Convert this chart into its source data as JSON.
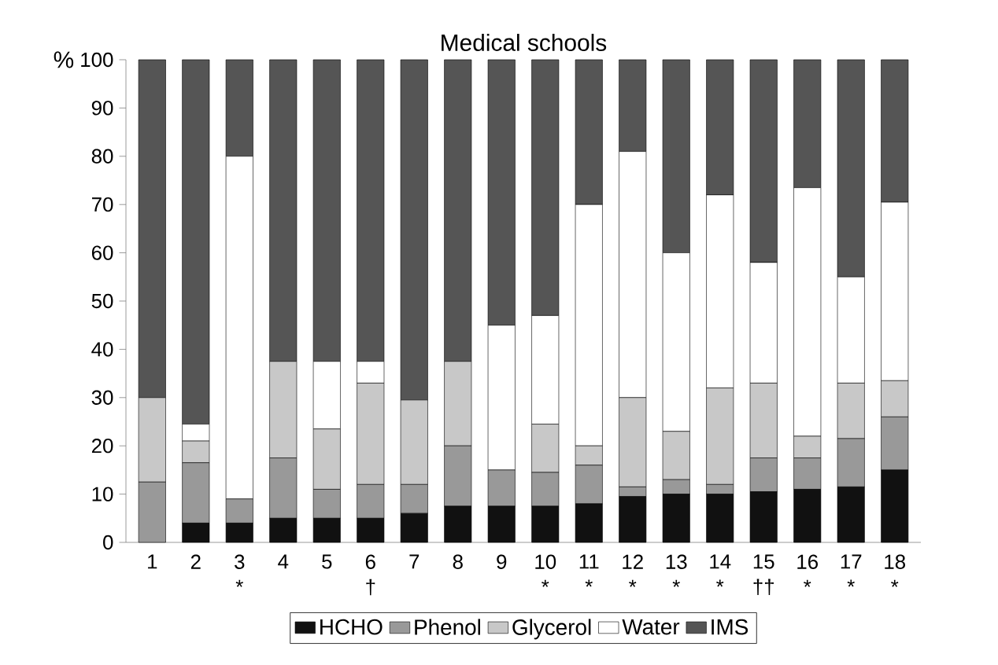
{
  "chart_data": {
    "type": "bar",
    "stacked": true,
    "title": "Medical schools",
    "ylabel": "%",
    "categories": [
      "1",
      "2",
      "3 *",
      "4",
      "5",
      "6 †",
      "7",
      "8",
      "9",
      "10 *",
      "11 *",
      "12 *",
      "13 *",
      "14 *",
      "15 ††",
      "16 *",
      "17 *",
      "18 *"
    ],
    "series": [
      {
        "name": "HCHO",
        "color": "#111111",
        "values": [
          0,
          4,
          4,
          5,
          5,
          5,
          6,
          7.5,
          7.5,
          7.5,
          8,
          9.5,
          10,
          10,
          10.5,
          11,
          11.5,
          15
        ]
      },
      {
        "name": "Phenol",
        "color": "#999999",
        "values": [
          12.5,
          12.5,
          5,
          12.5,
          6,
          7,
          6,
          12.5,
          7.5,
          7,
          8,
          2,
          3,
          2,
          7,
          6.5,
          10,
          11
        ]
      },
      {
        "name": "Glycerol",
        "color": "#c8c8c8",
        "values": [
          17.5,
          4.5,
          0,
          20,
          12.5,
          21,
          17.5,
          17.5,
          0,
          10,
          4,
          18.5,
          10,
          20,
          15.5,
          4.5,
          11.5,
          7.5
        ]
      },
      {
        "name": "Water",
        "color": "#ffffff",
        "values": [
          0,
          3.5,
          71,
          0,
          14,
          4.5,
          0,
          0,
          30,
          22.5,
          50,
          51,
          37,
          40,
          25,
          51.5,
          22,
          37
        ]
      },
      {
        "name": "IMS",
        "color": "#555555",
        "values": [
          70,
          75.5,
          20,
          62.5,
          62.5,
          62.5,
          70.5,
          62.5,
          55,
          53,
          30,
          19,
          40,
          28,
          42,
          26.5,
          45,
          29.5
        ]
      }
    ],
    "ylim": [
      0,
      100
    ],
    "yticks": [
      0,
      10,
      20,
      30,
      40,
      50,
      60,
      70,
      80,
      90,
      100
    ],
    "legend": "bottom"
  }
}
